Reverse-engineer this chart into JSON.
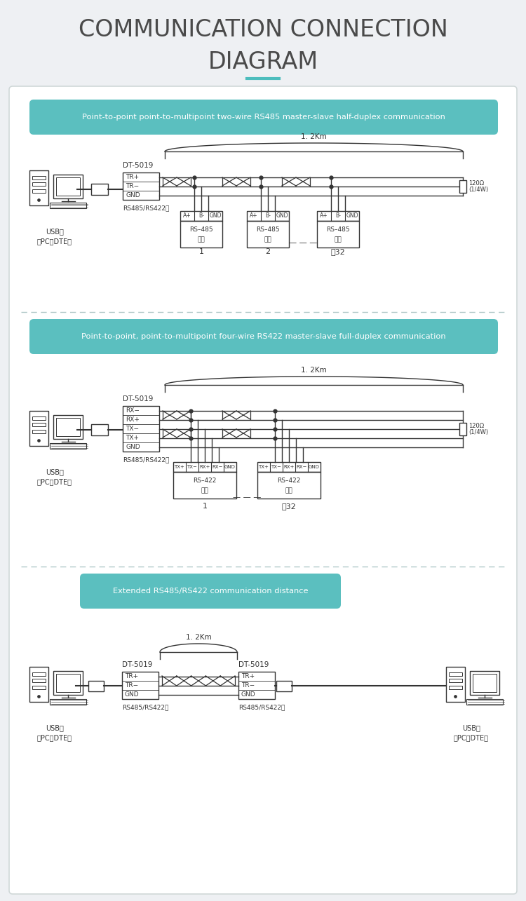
{
  "title_line1": "COMMUNICATION CONNECTION",
  "title_line2": "DIAGRAM",
  "title_color": "#4a4a4a",
  "title_underline_color": "#4dbdbd",
  "bg_color": "#eef0f3",
  "panel_bg": "#ffffff",
  "banner_bg": "#5bbfbf",
  "banner_text_color": "#ffffff",
  "diagram_line_color": "#333333",
  "banner1": "Point-to-point point-to-multipoint two-wire RS485 master-slave half-duplex communication",
  "banner2": "Point-to-point, point-to-multipoint four-wire RS422 master-slave full-duplex communication",
  "banner3": "Extended RS485/RS422 communication distance",
  "sep_color": "#b0c8c8",
  "resistor_color": "#ffffff"
}
